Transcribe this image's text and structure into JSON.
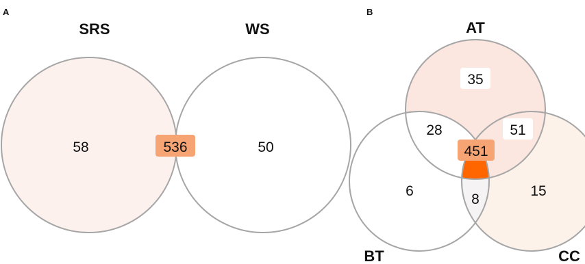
{
  "panel_a": {
    "label": "A",
    "sets": [
      "SRS",
      "WS"
    ],
    "regions": {
      "srs_only": "58",
      "intersection": "536",
      "ws_only": "50"
    }
  },
  "panel_b": {
    "label": "B",
    "sets": [
      "AT",
      "BT",
      "CC"
    ],
    "regions": {
      "at_only": "35",
      "at_bt": "28",
      "at_cc": "51",
      "all_three": "451",
      "bt_only": "6",
      "bt_cc": "8",
      "cc_only": "15"
    }
  },
  "colors": {
    "highlight": "#ff6600",
    "highlight_label_bg": "#f7a474",
    "outline": "#a6a6a6",
    "srs_fill": "#fdf1ee",
    "at_fill": "#fbe6e0",
    "cc_fill": "#fdf2ea",
    "bt_cc_fill": "#f5f3f3",
    "label_box": "#ffffff"
  }
}
